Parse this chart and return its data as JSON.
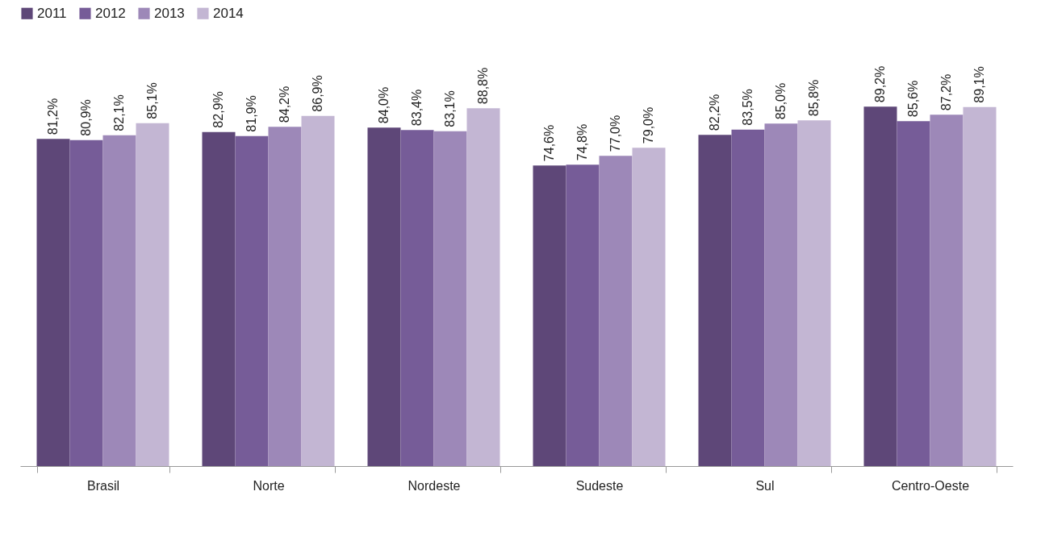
{
  "chart_data": {
    "type": "bar",
    "categories": [
      "Brasil",
      "Norte",
      "Nordeste",
      "Sudeste",
      "Sul",
      "Centro-Oeste"
    ],
    "series": [
      {
        "name": "2011",
        "color": "#5e4778",
        "values": [
          81.2,
          82.9,
          84.0,
          74.6,
          82.2,
          89.2
        ],
        "value_labels": [
          "81,2%",
          "82,9%",
          "84,0%",
          "74,6%",
          "82,2%",
          "89,2%"
        ]
      },
      {
        "name": "2012",
        "color": "#765c98",
        "values": [
          80.9,
          81.9,
          83.4,
          74.8,
          83.5,
          85.6
        ],
        "value_labels": [
          "80,9%",
          "81,9%",
          "83,4%",
          "74,8%",
          "83,5%",
          "85,6%"
        ]
      },
      {
        "name": "2013",
        "color": "#9d88b8",
        "values": [
          82.1,
          84.2,
          83.1,
          77.0,
          85.0,
          87.2
        ],
        "value_labels": [
          "82,1%",
          "84,2%",
          "83,1%",
          "77,0%",
          "85,0%",
          "87,2%"
        ]
      },
      {
        "name": "2014",
        "color": "#c3b6d3",
        "values": [
          85.1,
          86.9,
          88.8,
          79.0,
          85.8,
          89.1
        ],
        "value_labels": [
          "85,1%",
          "86,9%",
          "88,8%",
          "79,0%",
          "85,8%",
          "89,1%"
        ]
      }
    ],
    "legend": "top"
  }
}
